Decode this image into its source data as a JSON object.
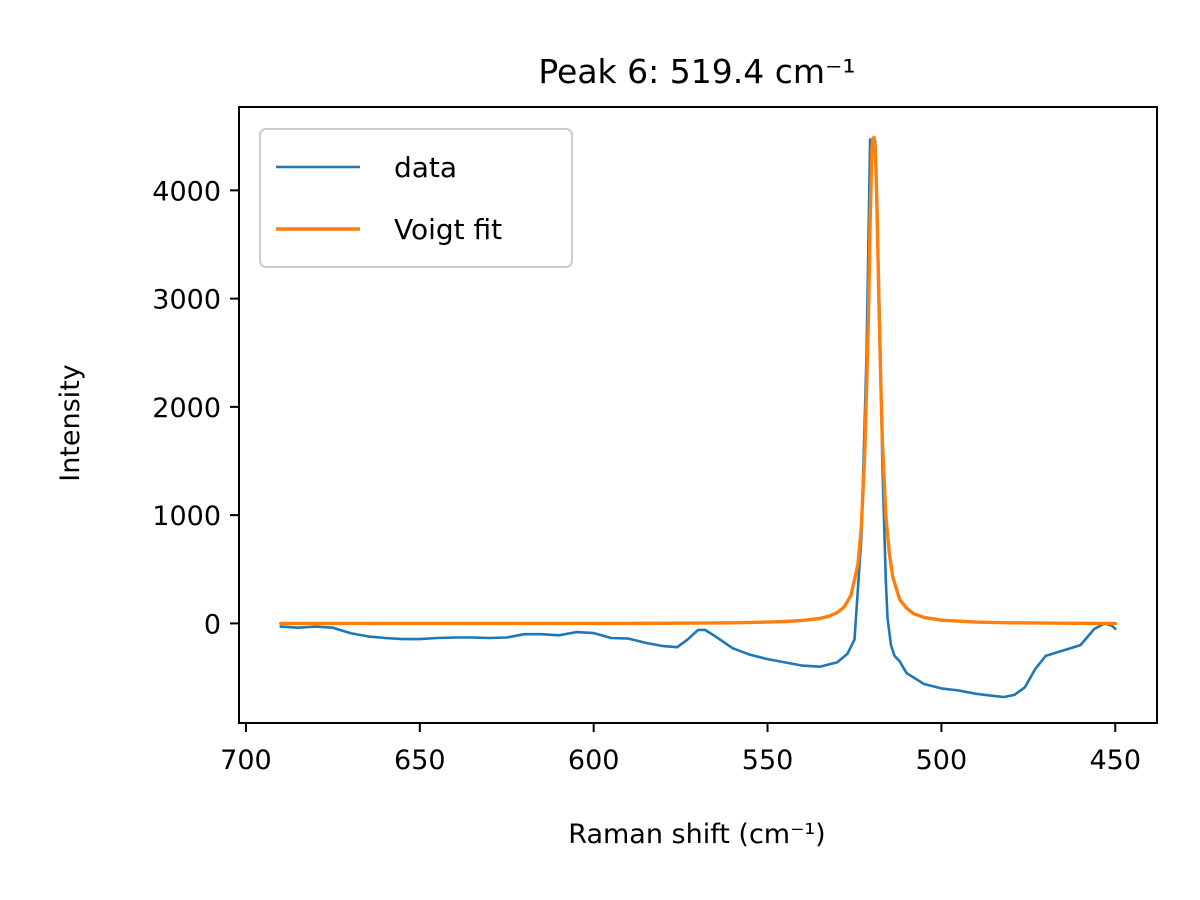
{
  "chart_data": {
    "type": "line",
    "title": "Peak 6: 519.4 cm⁻¹",
    "xlabel": "Raman shift (cm⁻¹)",
    "ylabel": "Intensity",
    "xlim": [
      702,
      438
    ],
    "ylim": [
      -920,
      4770
    ],
    "x_inverted": true,
    "xticks": [
      700,
      650,
      600,
      550,
      500,
      450
    ],
    "yticks": [
      0,
      1000,
      2000,
      3000,
      4000
    ],
    "grid": false,
    "legend": {
      "position": "upper-left",
      "entries": [
        "data",
        "Voigt fit"
      ]
    },
    "series": [
      {
        "name": "data",
        "color": "#1f77b4",
        "x": [
          690,
          685,
          680,
          675,
          670,
          665,
          660,
          655,
          650,
          645,
          640,
          635,
          630,
          625,
          620,
          615,
          610,
          605,
          600,
          595,
          590,
          585,
          580,
          576,
          573,
          570,
          568,
          565,
          560,
          555,
          550,
          545,
          540,
          535,
          530,
          527,
          525,
          523,
          521.5,
          520.5,
          519.8,
          519.4,
          519,
          518.5,
          518,
          517.5,
          517,
          516,
          515.5,
          514.5,
          513.5,
          512,
          510,
          505,
          500,
          495,
          490,
          485,
          482,
          479,
          476,
          473,
          470,
          465,
          460,
          456,
          453,
          451,
          450
        ],
        "y": [
          -30,
          -40,
          -30,
          -40,
          -90,
          -120,
          -135,
          -145,
          -145,
          -135,
          -130,
          -130,
          -135,
          -130,
          -100,
          -100,
          -110,
          -80,
          -90,
          -135,
          -140,
          -180,
          -210,
          -220,
          -150,
          -60,
          -60,
          -120,
          -230,
          -290,
          -330,
          -360,
          -390,
          -400,
          -360,
          -280,
          -150,
          800,
          2500,
          4470,
          4450,
          4480,
          4450,
          3700,
          3200,
          2400,
          1500,
          400,
          50,
          -200,
          -300,
          -350,
          -460,
          -560,
          -600,
          -620,
          -650,
          -670,
          -680,
          -660,
          -590,
          -420,
          -300,
          -250,
          -200,
          -50,
          0,
          -20,
          -50
        ]
      },
      {
        "name": "Voigt fit",
        "color": "#ff7f0e",
        "x": [
          690,
          670,
          650,
          630,
          610,
          590,
          570,
          560,
          550,
          545,
          540,
          535,
          532,
          530,
          528,
          526,
          524,
          523,
          522,
          521,
          520.5,
          520,
          519.7,
          519.4,
          519.1,
          518.8,
          518.5,
          518,
          517.5,
          517,
          516,
          515,
          514,
          512,
          510,
          508,
          505,
          500,
          490,
          480,
          470,
          460,
          450
        ],
        "y": [
          0,
          0,
          0,
          0,
          0,
          0,
          3,
          6,
          12,
          18,
          28,
          45,
          70,
          100,
          150,
          260,
          550,
          900,
          1600,
          2800,
          3700,
          4380,
          4480,
          4490,
          4420,
          4200,
          3800,
          3000,
          2300,
          1700,
          1000,
          650,
          430,
          220,
          140,
          90,
          55,
          30,
          12,
          6,
          3,
          1,
          0
        ]
      }
    ]
  }
}
